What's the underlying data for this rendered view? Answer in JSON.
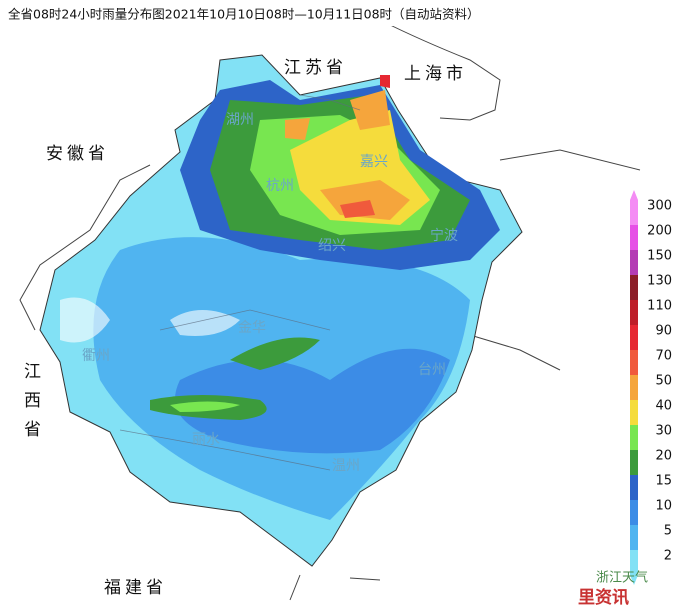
{
  "header": {
    "title": "全省08时24小时雨量分布图2021年10月10日08时—10月11日08时（自动站资料）"
  },
  "provinces": [
    "江苏省",
    "上海市",
    "安徽省",
    "江西省",
    "福建省"
  ],
  "cities": [
    "湖州",
    "杭州",
    "嘉兴",
    "绍兴",
    "宁波",
    "金华",
    "衢州",
    "台州",
    "丽水",
    "温州"
  ],
  "legend": {
    "items": [
      {
        "value": 300,
        "color": "#f48cf4"
      },
      {
        "value": 200,
        "color": "#e650e6"
      },
      {
        "value": 150,
        "color": "#b43cb4"
      },
      {
        "value": 130,
        "color": "#8c1e28"
      },
      {
        "value": 110,
        "color": "#be1e28"
      },
      {
        "value": 90,
        "color": "#e62832"
      },
      {
        "value": 70,
        "color": "#f05a3c"
      },
      {
        "value": 50,
        "color": "#f5a53c"
      },
      {
        "value": 40,
        "color": "#f5dc3c"
      },
      {
        "value": 30,
        "color": "#78e650"
      },
      {
        "value": 20,
        "color": "#3c9b3c"
      },
      {
        "value": 15,
        "color": "#2d64c8"
      },
      {
        "value": 10,
        "color": "#3c8ce6"
      },
      {
        "value": 5,
        "color": "#50b4f0"
      },
      {
        "value": 2,
        "color": "#82e1f5"
      }
    ]
  },
  "watermark": {
    "brand": "浙江天气",
    "source": "里资讯"
  }
}
